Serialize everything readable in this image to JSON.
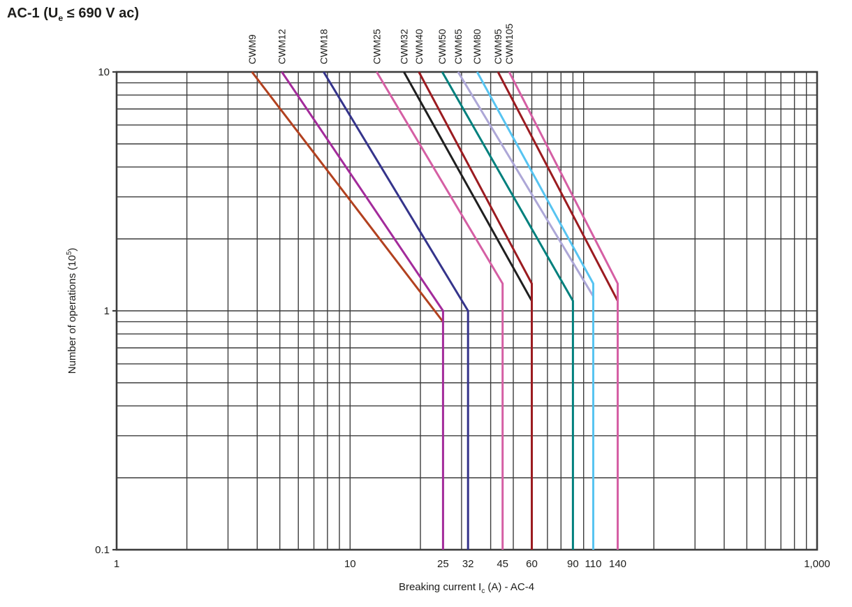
{
  "title": {
    "pre": "AC-1 (U",
    "sub": "e",
    "post": " ≤ 690 V ac)"
  },
  "y_axis_title": {
    "pre": "Number of operations (10",
    "sup": "5",
    "post": ")"
  },
  "x_axis_title": {
    "pre": "Breaking current I",
    "sub": "c",
    "post": " (A) - AC-4"
  },
  "chart_data": {
    "type": "line",
    "title": "AC-1 (Ue ≤ 690 V ac)",
    "xlabel": "Breaking current Ic (A) - AC-4",
    "ylabel": "Number of operations (10⁵)",
    "grid": "full logarithmic minor grid on both axes",
    "grid_color": "#3c3c3c",
    "text_color": "#1d1d1b",
    "x_axis": {
      "scale": "log",
      "min": 1,
      "max": 1000,
      "ticks": [
        {
          "value": 1,
          "label": "1"
        },
        {
          "value": 10,
          "label": "10"
        },
        {
          "value": 25,
          "label": "25"
        },
        {
          "value": 32,
          "label": "32"
        },
        {
          "value": 45,
          "label": "45"
        },
        {
          "value": 60,
          "label": "60"
        },
        {
          "value": 90,
          "label": "90"
        },
        {
          "value": 110,
          "label": "110"
        },
        {
          "value": 140,
          "label": "140"
        },
        {
          "value": 1000,
          "label": "1,000"
        }
      ]
    },
    "y_axis": {
      "scale": "log",
      "min": 0.1,
      "max": 10,
      "ticks": [
        {
          "value": 10,
          "label": "10"
        },
        {
          "value": 1,
          "label": "1"
        },
        {
          "value": 0.1,
          "label": "0.1"
        }
      ]
    },
    "series": [
      {
        "name": "CWM9",
        "color": "#B2411F",
        "start_current_A": 3.8,
        "max_breaking_current_A": 25,
        "operations_at_max": 0.9,
        "has_own_vertical_drop": false
      },
      {
        "name": "CWM12",
        "color": "#A32B9B",
        "start_current_A": 5.1,
        "max_breaking_current_A": 25,
        "operations_at_max": 1.0,
        "has_own_vertical_drop": true
      },
      {
        "name": "CWM18",
        "color": "#35348B",
        "start_current_A": 7.7,
        "max_breaking_current_A": 32,
        "operations_at_max": 1.0,
        "has_own_vertical_drop": true
      },
      {
        "name": "CWM25",
        "color": "#D55FA4",
        "start_current_A": 13,
        "max_breaking_current_A": 45,
        "operations_at_max": 1.3,
        "has_own_vertical_drop": true
      },
      {
        "name": "CWM32",
        "color": "#1F1F1F",
        "start_current_A": 17,
        "max_breaking_current_A": 60,
        "operations_at_max": 1.1,
        "has_own_vertical_drop": false
      },
      {
        "name": "CWM40",
        "color": "#9B1B20",
        "start_current_A": 19.7,
        "max_breaking_current_A": 60,
        "operations_at_max": 1.3,
        "has_own_vertical_drop": true
      },
      {
        "name": "CWM50",
        "color": "#02807D",
        "start_current_A": 24.8,
        "max_breaking_current_A": 90,
        "operations_at_max": 1.1,
        "has_own_vertical_drop": true
      },
      {
        "name": "CWM65",
        "color": "#ADA7D7",
        "start_current_A": 29,
        "max_breaking_current_A": 110,
        "operations_at_max": 1.15,
        "has_own_vertical_drop": false
      },
      {
        "name": "CWM80",
        "color": "#57C4F1",
        "start_current_A": 35,
        "max_breaking_current_A": 110,
        "operations_at_max": 1.3,
        "has_own_vertical_drop": true
      },
      {
        "name": "CWM95",
        "color": "#9B1B20",
        "start_current_A": 43,
        "max_breaking_current_A": 140,
        "operations_at_max": 1.1,
        "has_own_vertical_drop": false
      },
      {
        "name": "CWM105",
        "color": "#D55FA4",
        "start_current_A": 48,
        "max_breaking_current_A": 140,
        "operations_at_max": 1.3,
        "has_own_vertical_drop": true
      }
    ]
  }
}
